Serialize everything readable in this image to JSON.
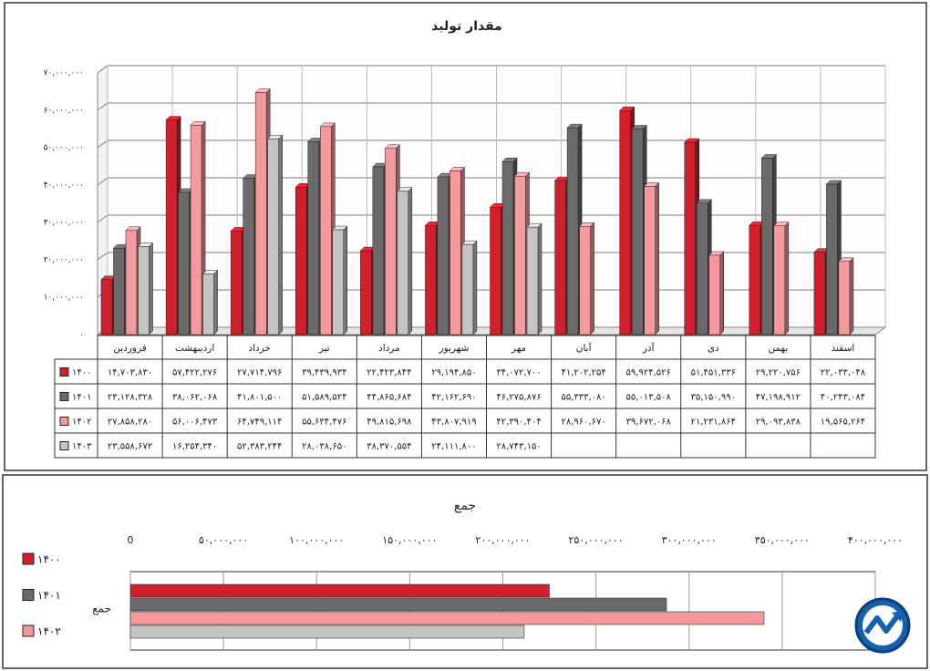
{
  "chart_data": [
    {
      "type": "bar3d",
      "title": "مقدار تولید",
      "categories": [
        "فروردین",
        "اردیبهشت",
        "خرداد",
        "تیر",
        "مرداد",
        "شهریور",
        "مهر",
        "آبان",
        "آذر",
        "دی",
        "بهمن",
        "اسفند"
      ],
      "ylim": [
        0,
        70000000
      ],
      "yticks": [
        {
          "value": 0,
          "label": "۰"
        },
        {
          "value": 10000000,
          "label": "۱۰,۰۰۰,۰۰۰"
        },
        {
          "value": 20000000,
          "label": "۲۰,۰۰۰,۰۰۰"
        },
        {
          "value": 30000000,
          "label": "۳۰,۰۰۰,۰۰۰"
        },
        {
          "value": 40000000,
          "label": "۴۰,۰۰۰,۰۰۰"
        },
        {
          "value": 50000000,
          "label": "۵۰,۰۰۰,۰۰۰"
        },
        {
          "value": 60000000,
          "label": "۶۰,۰۰۰,۰۰۰"
        },
        {
          "value": 70000000,
          "label": "۷۰,۰۰۰,۰۰۰"
        }
      ],
      "grid": true,
      "series": [
        {
          "name": "۱۴۰۰",
          "color": "#d0202c",
          "values": [
            14703830,
            57422276,
            27714796,
            39439934,
            22423844,
            29194850,
            34072700,
            41202254,
            59924526,
            51451336,
            29220756,
            22033048
          ],
          "value_labels": [
            "۱۴,۷۰۳,۸۳۰",
            "۵۷,۴۲۲,۲۷۶",
            "۲۷,۷۱۴,۷۹۶",
            "۳۹,۴۳۹,۹۳۴",
            "۲۲,۴۲۳,۸۴۴",
            "۲۹,۱۹۴,۸۵۰",
            "۳۴,۰۷۲,۷۰۰",
            "۴۱,۲۰۲,۲۵۴",
            "۵۹,۹۲۴,۵۲۶",
            "۵۱,۴۵۱,۳۳۶",
            "۲۹,۲۲۰,۷۵۶",
            "۲۲,۰۳۳,۰۴۸"
          ]
        },
        {
          "name": "۱۴۰۱",
          "color": "#6a6a6a",
          "values": [
            23128328,
            38062068,
            41801500,
            51589524,
            44865684,
            42162690,
            46275876,
            55333080,
            55013508,
            35150990,
            47198912,
            40243084
          ],
          "value_labels": [
            "۲۳,۱۲۸,۳۲۸",
            "۳۸,۰۶۲,۰۶۸",
            "۴۱,۸۰۱,۵۰۰",
            "۵۱,۵۸۹,۵۲۴",
            "۴۴,۸۶۵,۶۸۴",
            "۴۲,۱۶۲,۶۹۰",
            "۴۶,۲۷۵,۸۷۶",
            "۵۵,۳۳۳,۰۸۰",
            "۵۵,۰۱۳,۵۰۸",
            "۳۵,۱۵۰,۹۹۰",
            "۴۷,۱۹۸,۹۱۲",
            "۴۰,۲۴۳,۰۸۴"
          ]
        },
        {
          "name": "۱۴۰۲",
          "color": "#f59a9c",
          "values": [
            27858280,
            56006473,
            64749114,
            55634476,
            49815698,
            43807919,
            42390404,
            28960670,
            39672068,
            21231864,
            29093838,
            19565264
          ],
          "value_labels": [
            "۲۷,۸۵۸,۲۸۰",
            "۵۶,۰۰۶,۴۷۳",
            "۶۴,۷۴۹,۱۱۴",
            "۵۵,۶۳۴,۴۷۶",
            "۴۹,۸۱۵,۶۹۸",
            "۴۳,۸۰۷,۹۱۹",
            "۴۲,۳۹۰,۴۰۴",
            "۲۸,۹۶۰,۶۷۰",
            "۳۹,۶۷۲,۰۶۸",
            "۲۱,۲۳۱,۸۶۴",
            "۲۹,۰۹۳,۸۳۸",
            "۱۹,۵۶۵,۲۶۴"
          ]
        },
        {
          "name": "۱۴۰۳",
          "color": "#c4c4c4",
          "values": [
            23558672,
            16254340,
            52383244,
            28038650,
            38370554,
            24111800,
            28743150,
            null,
            null,
            null,
            null,
            null
          ],
          "value_labels": [
            "۲۳,۵۵۸,۶۷۲",
            "۱۶,۲۵۴,۳۴۰",
            "۵۲,۳۸۳,۲۴۴",
            "۲۸,۰۳۸,۶۵۰",
            "۳۸,۳۷۰,۵۵۴",
            "۲۴,۱۱۱,۸۰۰",
            "۲۸,۷۴۳,۱۵۰",
            null,
            null,
            null,
            null,
            null
          ]
        }
      ]
    },
    {
      "type": "hbar",
      "title": "جمع",
      "categories": [
        "جمع"
      ],
      "xlim": [
        0,
        400000000
      ],
      "xticks": [
        0,
        {
          "value": 50000000,
          "label": "۵۰,۰۰۰,۰۰۰"
        },
        {
          "value": 100000000,
          "label": "۱۰۰,۰۰۰,۰۰۰"
        },
        {
          "value": 150000000,
          "label": "۱۵۰,۰۰۰,۰۰۰"
        },
        {
          "value": 200000000,
          "label": "۲۰۰,۰۰۰,۰۰۰"
        },
        {
          "value": 250000000,
          "label": "۲۵۰,۰۰۰,۰۰۰"
        },
        {
          "value": 300000000,
          "label": "۳۰۰,۰۰۰,۰۰۰"
        },
        {
          "value": 350000000,
          "label": "۳۵۰,۰۰۰,۰۰۰"
        },
        {
          "value": 400000000,
          "label": "۴۰۰,۰۰۰,۰۰۰"
        }
      ],
      "grid": true,
      "series": [
        {
          "name": "۱۴۰۰",
          "color": "#d0202c",
          "values": [
            224972230
          ]
        },
        {
          "name": "۱۴۰۱",
          "color": "#6a6a6a",
          "values": [
            287885670
          ]
        },
        {
          "name": "۱۴۰۲",
          "color": "#f59a9c",
          "values": [
            340262364
          ]
        },
        {
          "color": "#c4c4c4",
          "values": [
            211460410
          ]
        }
      ]
    }
  ]
}
